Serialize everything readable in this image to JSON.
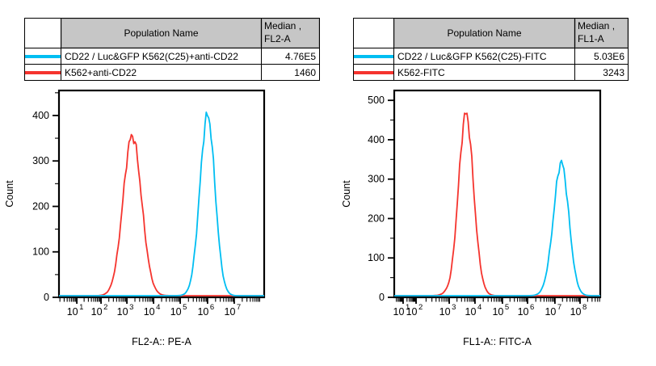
{
  "tables": [
    {
      "header": {
        "population": "Population Name",
        "median_label": "Median ,",
        "median_param": "FL2-A"
      },
      "rows": [
        {
          "color": "#00bef2",
          "name": "CD22 / Luc&GFP K562(C25)+anti-CD22",
          "median": "4.76E5"
        },
        {
          "color": "#f5342e",
          "name": "K562+anti-CD22",
          "median": "1460"
        }
      ]
    },
    {
      "header": {
        "population": "Population Name",
        "median_label": "Median ,",
        "median_param": "FL1-A"
      },
      "rows": [
        {
          "color": "#00bef2",
          "name": "CD22 / Luc&GFP K562(C25)-FITC",
          "median": "5.03E6"
        },
        {
          "color": "#f5342e",
          "name": "K562-FITC",
          "median": "3243"
        }
      ]
    }
  ],
  "chart_data": [
    {
      "type": "line",
      "title": "",
      "xlabel": "FL2-A:: PE-A",
      "ylabel": "Count",
      "x_scale": "logicle",
      "x_ticks": [
        {
          "exp": 1,
          "frac": 0.087
        },
        {
          "exp": 2,
          "frac": 0.205
        },
        {
          "exp": 3,
          "frac": 0.331
        },
        {
          "exp": 4,
          "frac": 0.461
        },
        {
          "exp": 5,
          "frac": 0.591
        },
        {
          "exp": 6,
          "frac": 0.724
        },
        {
          "exp": 7,
          "frac": 0.854
        }
      ],
      "ylim": [
        0,
        455
      ],
      "y_major_step": 100,
      "y_minor_step": 50,
      "grid": false,
      "legend_position": "table-above",
      "series": [
        {
          "name": "K562+anti-CD22",
          "color": "#f5342e",
          "peak_exp": 3.2,
          "sigma_decades": 0.35,
          "peak_count": 352,
          "median": "1460"
        },
        {
          "name": "CD22 / Luc&GFP K562(C25)+anti-CD22",
          "color": "#00bef2",
          "peak_exp": 6.0,
          "sigma_decades": 0.28,
          "peak_count": 397,
          "median": "4.76E5"
        }
      ]
    },
    {
      "type": "line",
      "title": "",
      "xlabel": "FL1-A:: FITC-A",
      "ylabel": "Count",
      "x_scale": "logicle",
      "x_ticks": [
        {
          "exp": 1,
          "frac": 0.043
        },
        {
          "exp": 2,
          "frac": 0.106
        },
        {
          "exp": 3,
          "frac": 0.267
        },
        {
          "exp": 4,
          "frac": 0.392
        },
        {
          "exp": 5,
          "frac": 0.525
        },
        {
          "exp": 6,
          "frac": 0.647
        },
        {
          "exp": 7,
          "frac": 0.78
        },
        {
          "exp": 8,
          "frac": 0.902
        }
      ],
      "ylim": [
        0,
        525
      ],
      "y_major_step": 100,
      "y_minor_step": 50,
      "grid": false,
      "legend_position": "table-above",
      "series": [
        {
          "name": "K562-FITC",
          "color": "#f5342e",
          "peak_exp": 3.65,
          "sigma_decades": 0.29,
          "peak_count": 462,
          "median": "3243"
        },
        {
          "name": "CD22 / Luc&GFP K562(C25)-FITC",
          "color": "#00bef2",
          "peak_exp": 7.25,
          "sigma_decades": 0.3,
          "peak_count": 338,
          "median": "5.03E6"
        }
      ]
    }
  ]
}
